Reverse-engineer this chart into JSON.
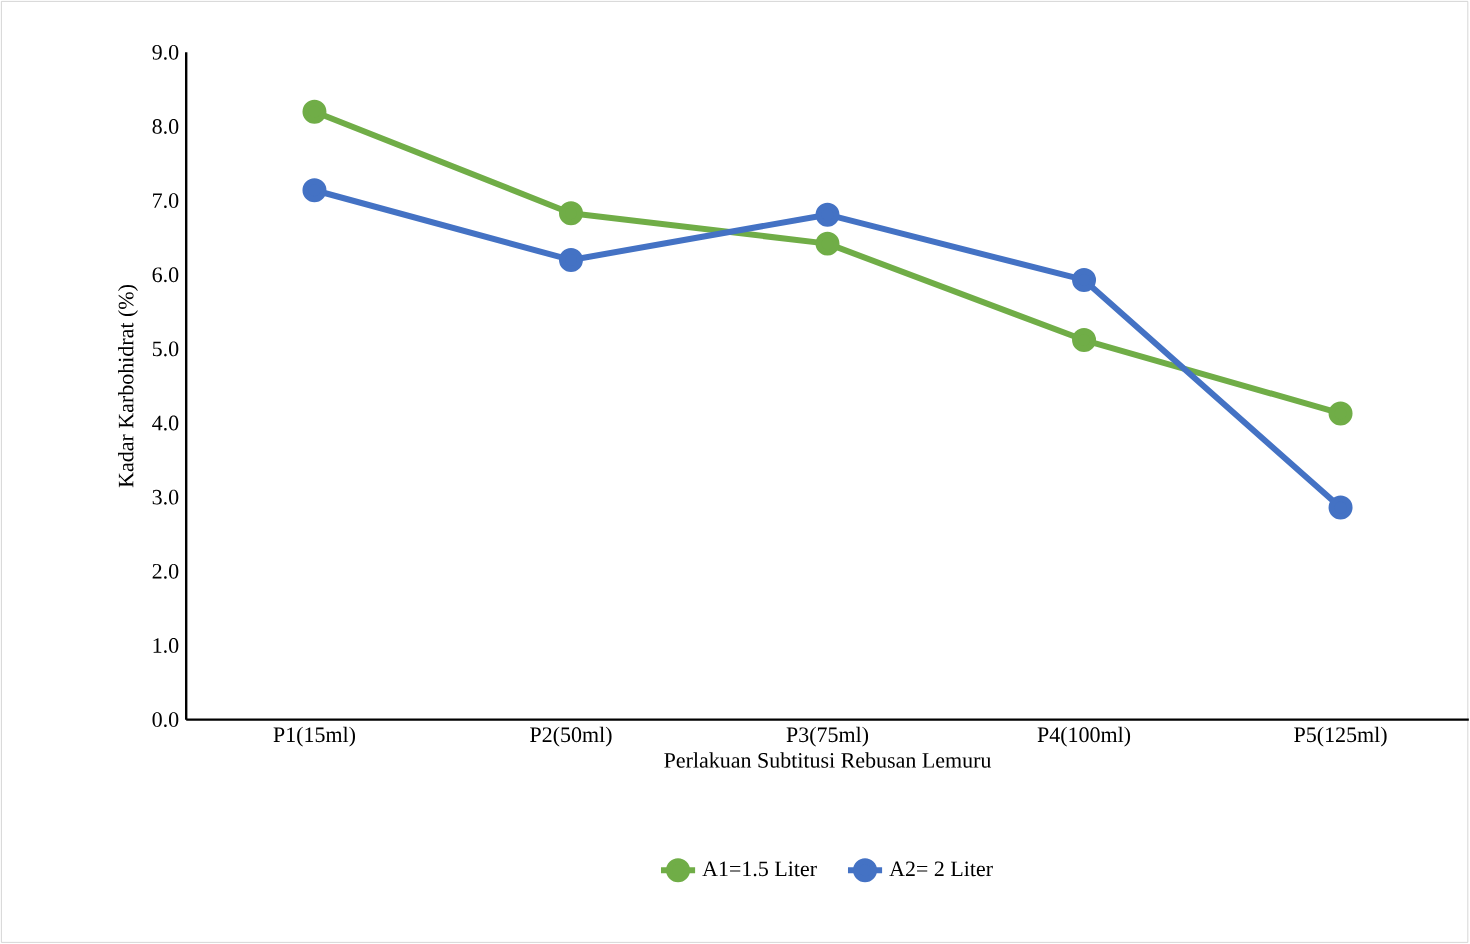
{
  "chart_data": {
    "type": "line",
    "xlabel": "Perlakuan  Subtitusi Rebusan Lemuru",
    "ylabel": "Kadar Karbohidrat (%)",
    "categories": [
      "P1(15ml)",
      "P2(50ml)",
      "P3(75ml)",
      "P4(100ml)",
      "P5(125ml)"
    ],
    "series": [
      {
        "name": "A1=1.5 Liter",
        "color": "#70ad47",
        "values": [
          8.2,
          6.83,
          6.42,
          5.12,
          4.13
        ]
      },
      {
        "name": "A2= 2 Liter",
        "color": "#4472c4",
        "values": [
          7.14,
          6.2,
          6.81,
          5.93,
          2.86
        ]
      }
    ],
    "ylim": [
      0,
      9
    ],
    "yticks": [
      {
        "value": 0,
        "label": "0.0"
      },
      {
        "value": 1,
        "label": "1.0"
      },
      {
        "value": 2,
        "label": "2.0"
      },
      {
        "value": 3,
        "label": "3.0"
      },
      {
        "value": 4,
        "label": "4.0"
      },
      {
        "value": 5,
        "label": "5.0"
      },
      {
        "value": 6,
        "label": "6.0"
      },
      {
        "value": 7,
        "label": "7.0"
      },
      {
        "value": 8,
        "label": "8.0"
      },
      {
        "value": 9,
        "label": "9.0"
      }
    ],
    "grid": false,
    "legend": "bottom",
    "marker": "circle",
    "line_style": "solid"
  }
}
